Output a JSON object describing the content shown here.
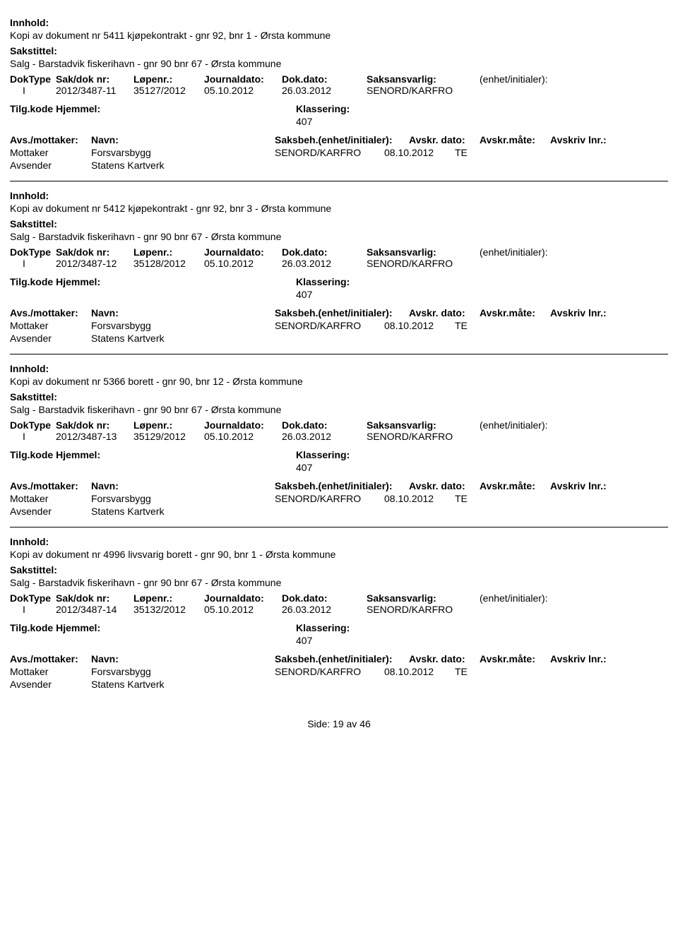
{
  "labels": {
    "innhold": "Innhold:",
    "sakstittel": "Sakstittel:",
    "doktype": "DokType",
    "sakdok": "Sak/dok nr:",
    "lopenr": "Løpenr.:",
    "journaldato": "Journaldato:",
    "dokdato": "Dok.dato:",
    "saksansvarlig": "Saksansvarlig:",
    "enhet_initialer": "(enhet/initialer):",
    "tilgkode_hjemmel": "Tilg.kode Hjemmel:",
    "klassering": "Klassering:",
    "avs_mottaker": "Avs./mottaker:",
    "navn": "Navn:",
    "saksbeh_enhet": "Saksbeh.(enhet/initialer):",
    "avskr_dato": "Avskr. dato:",
    "avskr_mate": "Avskr.måte:",
    "avskriv_lnr": "Avskriv lnr.:",
    "mottaker": "Mottaker",
    "avsender": "Avsender",
    "side": "Side:",
    "av": "av"
  },
  "pager": {
    "page": "19",
    "total": "46"
  },
  "records": [
    {
      "innhold": "Kopi av dokument nr 5411 kjøpekontrakt - gnr 92, bnr 1 - Ørsta kommune",
      "sakstittel": "Salg - Barstadvik fiskerihavn - gnr 90 bnr 67 - Ørsta kommune",
      "doktype": "I",
      "sakdok": "2012/3487-11",
      "lopenr": "35127/2012",
      "journaldato": "05.10.2012",
      "dokdato": "26.03.2012",
      "saksansvarlig": "SENORD/KARFRO",
      "klassering": "407",
      "mottaker_name": "Forsvarsbygg",
      "avsender_name": "Statens Kartverk",
      "saksbeh": "SENORD/KARFRO",
      "avskr_dato": "08.10.2012",
      "avskr_mate": "TE"
    },
    {
      "innhold": "Kopi av dokument nr 5412 kjøpekontrakt - gnr 92, bnr 3 - Ørsta kommune",
      "sakstittel": "Salg - Barstadvik fiskerihavn - gnr 90 bnr 67 - Ørsta kommune",
      "doktype": "I",
      "sakdok": "2012/3487-12",
      "lopenr": "35128/2012",
      "journaldato": "05.10.2012",
      "dokdato": "26.03.2012",
      "saksansvarlig": "SENORD/KARFRO",
      "klassering": "407",
      "mottaker_name": "Forsvarsbygg",
      "avsender_name": "Statens Kartverk",
      "saksbeh": "SENORD/KARFRO",
      "avskr_dato": "08.10.2012",
      "avskr_mate": "TE"
    },
    {
      "innhold": "Kopi av dokument nr 5366 borett - gnr 90, bnr 12 - Ørsta kommune",
      "sakstittel": "Salg - Barstadvik fiskerihavn - gnr 90 bnr 67 - Ørsta kommune",
      "doktype": "I",
      "sakdok": "2012/3487-13",
      "lopenr": "35129/2012",
      "journaldato": "05.10.2012",
      "dokdato": "26.03.2012",
      "saksansvarlig": "SENORD/KARFRO",
      "klassering": "407",
      "mottaker_name": "Forsvarsbygg",
      "avsender_name": "Statens Kartverk",
      "saksbeh": "SENORD/KARFRO",
      "avskr_dato": "08.10.2012",
      "avskr_mate": "TE"
    },
    {
      "innhold": "Kopi av dokument nr 4996 livsvarig borett - gnr 90, bnr 1 - Ørsta kommune",
      "sakstittel": "Salg - Barstadvik fiskerihavn - gnr 90 bnr 67 - Ørsta kommune",
      "doktype": "I",
      "sakdok": "2012/3487-14",
      "lopenr": "35132/2012",
      "journaldato": "05.10.2012",
      "dokdato": "26.03.2012",
      "saksansvarlig": "SENORD/KARFRO",
      "klassering": "407",
      "mottaker_name": "Forsvarsbygg",
      "avsender_name": "Statens Kartverk",
      "saksbeh": "SENORD/KARFRO",
      "avskr_dato": "08.10.2012",
      "avskr_mate": "TE"
    }
  ]
}
